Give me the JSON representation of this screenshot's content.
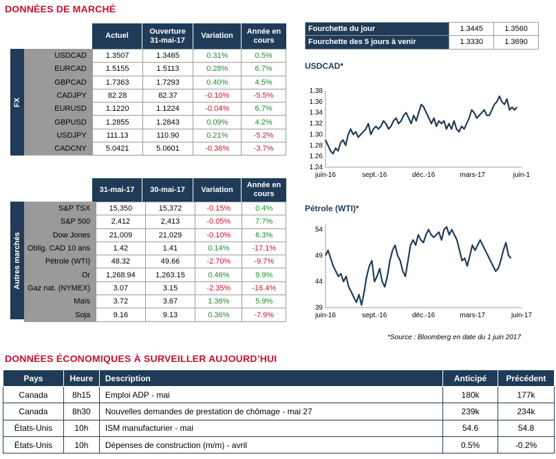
{
  "section_market": "DONNÉES DE MARCHÉ",
  "fx": {
    "side_label": "FX",
    "headers": [
      "Actuel",
      "Ouverture\n31-mai-17",
      "Variation",
      "Année en cours"
    ],
    "rows": [
      {
        "name": "USDCAD",
        "actuel": "1.3507",
        "ouverture": "1.3465",
        "variation": "0.31%",
        "ytd": "0.5%",
        "var_pos": true,
        "ytd_pos": true
      },
      {
        "name": "EURCAD",
        "actuel": "1.5155",
        "ouverture": "1.5113",
        "variation": "0.28%",
        "ytd": "6.7%",
        "var_pos": true,
        "ytd_pos": true
      },
      {
        "name": "GBPCAD",
        "actuel": "1.7363",
        "ouverture": "1.7293",
        "variation": "0.40%",
        "ytd": "4.5%",
        "var_pos": true,
        "ytd_pos": true
      },
      {
        "name": "CADJPY",
        "actuel": "82.28",
        "ouverture": "82.37",
        "variation": "-0.10%",
        "ytd": "-5.5%",
        "var_pos": false,
        "ytd_pos": false
      },
      {
        "name": "EURUSD",
        "actuel": "1.1220",
        "ouverture": "1.1224",
        "variation": "-0.04%",
        "ytd": "6.7%",
        "var_pos": false,
        "ytd_pos": true
      },
      {
        "name": "GBPUSD",
        "actuel": "1.2855",
        "ouverture": "1.2843",
        "variation": "0.09%",
        "ytd": "4.2%",
        "var_pos": true,
        "ytd_pos": true
      },
      {
        "name": "USDJPY",
        "actuel": "111.13",
        "ouverture": "110.90",
        "variation": "0.21%",
        "ytd": "-5.2%",
        "var_pos": true,
        "ytd_pos": false
      },
      {
        "name": "CADCNY",
        "actuel": "5.0421",
        "ouverture": "5.0601",
        "variation": "-0.36%",
        "ytd": "-3.7%",
        "var_pos": false,
        "ytd_pos": false
      }
    ]
  },
  "markets": {
    "side_label": "Autres marchés",
    "headers": [
      "31-mai-17",
      "30-mai-17",
      "Variation",
      "Année en cours"
    ],
    "rows": [
      {
        "name": "S&P TSX",
        "c1": "15,350",
        "c2": "15,372",
        "variation": "-0.15%",
        "ytd": "0.4%",
        "var_pos": false,
        "ytd_pos": true
      },
      {
        "name": "S&P 500",
        "c1": "2,412",
        "c2": "2,413",
        "variation": "-0.05%",
        "ytd": "7.7%",
        "var_pos": false,
        "ytd_pos": true
      },
      {
        "name": "Dow Jones",
        "c1": "21,009",
        "c2": "21,029",
        "variation": "-0.10%",
        "ytd": "6.3%",
        "var_pos": false,
        "ytd_pos": true
      },
      {
        "name": "Oblig. CAD 10 ans",
        "c1": "1.42",
        "c2": "1.41",
        "variation": "0.14%",
        "ytd": "-17.1%",
        "var_pos": true,
        "ytd_pos": false
      },
      {
        "name": "Pétrole (WTI)",
        "c1": "48.32",
        "c2": "49.66",
        "variation": "-2.70%",
        "ytd": "-9.7%",
        "var_pos": false,
        "ytd_pos": false
      },
      {
        "name": "Or",
        "c1": "1,268.94",
        "c2": "1,263.15",
        "variation": "0.46%",
        "ytd": "9.9%",
        "var_pos": true,
        "ytd_pos": true
      },
      {
        "name": "Gaz nat. (NYMEX)",
        "c1": "3.07",
        "c2": "3.15",
        "variation": "-2.35%",
        "ytd": "-16.4%",
        "var_pos": false,
        "ytd_pos": false
      },
      {
        "name": "Maïs",
        "c1": "3.72",
        "c2": "3.67",
        "variation": "1.36%",
        "ytd": "5.9%",
        "var_pos": true,
        "ytd_pos": true
      },
      {
        "name": "Soja",
        "c1": "9.16",
        "c2": "9.13",
        "variation": "0.36%",
        "ytd": "-7.9%",
        "var_pos": true,
        "ytd_pos": false
      }
    ]
  },
  "ranges": [
    {
      "label": "Fourchette du jour",
      "low": "1.3445",
      "high": "1.3560"
    },
    {
      "label": "Fourchette des 5 jours à venir",
      "low": "1.3330",
      "high": "1.3690"
    }
  ],
  "chart_data": [
    {
      "type": "line",
      "title": "USDCAD*",
      "xticks": [
        "juin-16",
        "sept.-16",
        "déc.-16",
        "mars-17",
        "juin-1"
      ],
      "yticks": [
        "1.38",
        "1.36",
        "1.34",
        "1.32",
        "1.30",
        "1.28",
        "1.26",
        "1.24"
      ],
      "ylim": [
        1.24,
        1.38
      ],
      "color": "#1f3b57",
      "values": [
        1.29,
        1.28,
        1.27,
        1.265,
        1.275,
        1.27,
        1.285,
        1.29,
        1.28,
        1.3,
        1.31,
        1.3,
        1.305,
        1.295,
        1.3,
        1.305,
        1.31,
        1.32,
        1.3,
        1.31,
        1.315,
        1.31,
        1.315,
        1.325,
        1.32,
        1.31,
        1.315,
        1.325,
        1.33,
        1.32,
        1.325,
        1.335,
        1.34,
        1.33,
        1.32,
        1.335,
        1.325,
        1.34,
        1.355,
        1.35,
        1.34,
        1.33,
        1.32,
        1.33,
        1.315,
        1.325,
        1.32,
        1.325,
        1.31,
        1.32,
        1.31,
        1.325,
        1.31,
        1.305,
        1.315,
        1.31,
        1.32,
        1.33,
        1.345,
        1.34,
        1.33,
        1.335,
        1.34,
        1.345,
        1.335,
        1.335,
        1.345,
        1.355,
        1.36,
        1.37,
        1.36,
        1.355,
        1.365,
        1.345,
        1.35,
        1.345,
        1.35
      ]
    },
    {
      "type": "line",
      "title": "Pétrole (WTI)*",
      "xticks": [
        "juin-16",
        "sept.-16",
        "déc.-16",
        "mars-17",
        "juin-17"
      ],
      "yticks": [
        "54",
        "49",
        "44",
        "39"
      ],
      "ylim": [
        39,
        55
      ],
      "color": "#1f3b57",
      "values": [
        49,
        50,
        48.5,
        47,
        46,
        45,
        45.5,
        44,
        45,
        43,
        42,
        41,
        40,
        41.5,
        39.5,
        42,
        45,
        47,
        48,
        44,
        45,
        46.5,
        44,
        43,
        45,
        48,
        50,
        51,
        49,
        48,
        46,
        45,
        48,
        51,
        52,
        51,
        53,
        52,
        51.5,
        53,
        54,
        53,
        52.5,
        53,
        53.5,
        52,
        54,
        54.5,
        53,
        54,
        53,
        52,
        50,
        48,
        48.5,
        47,
        49,
        51,
        50,
        51,
        52,
        51,
        50,
        49,
        48,
        47,
        46,
        46.5,
        48,
        50,
        51.5,
        49,
        48.5
      ]
    }
  ],
  "source_note": "*Source : Bloomberg en date du  1 juin 2017",
  "section_econ": "DONNÉES ÉCONOMIQUES À SURVEILLER AUJOURD’HUI",
  "econ": {
    "headers": {
      "pays": "Pays",
      "heure": "Heure",
      "desc": "Description",
      "anticipe": "Anticipé",
      "precedent": "Précédent"
    },
    "rows": [
      {
        "pays": "Canada",
        "heure": "8h15",
        "desc": "Emploi ADP - mai",
        "anticipe": "180k",
        "precedent": "177k"
      },
      {
        "pays": "Canada",
        "heure": "8h30",
        "desc": "Nouvelles demandes de prestation de chômage - mai 27",
        "anticipe": "239k",
        "precedent": "234k"
      },
      {
        "pays": "États-Unis",
        "heure": "10h",
        "desc": "ISM manufacturier - mai",
        "anticipe": "54.6",
        "precedent": "54.8"
      },
      {
        "pays": "États-Unis",
        "heure": "10h",
        "desc": "Dépenses de construction (m/m) - avril",
        "anticipe": "0.5%",
        "precedent": "-0.2%"
      }
    ]
  }
}
